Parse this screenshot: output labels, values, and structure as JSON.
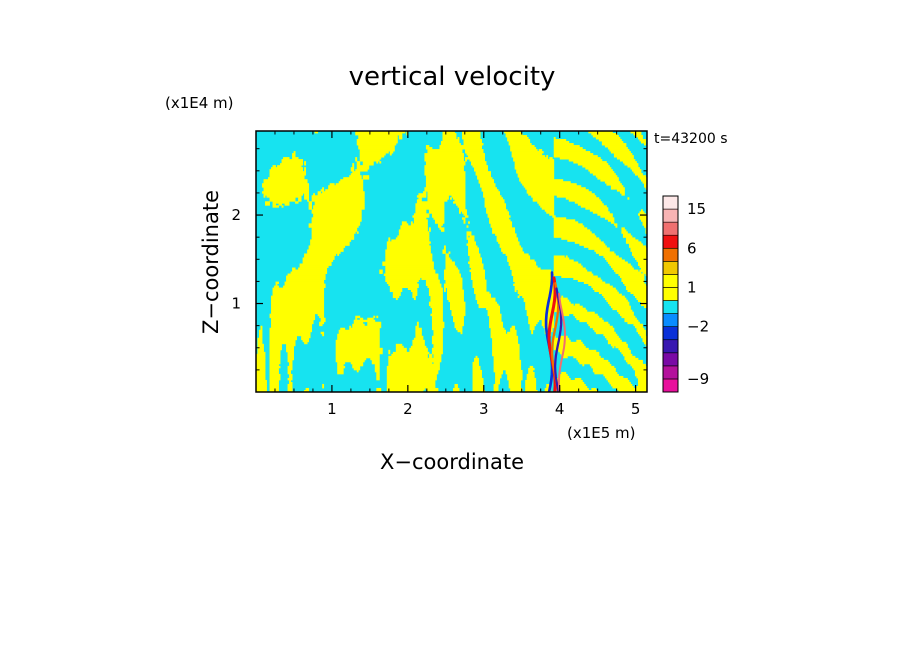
{
  "chart_data": {
    "type": "heatmap",
    "title": "vertical velocity",
    "xlabel": "X−coordinate",
    "ylabel": "Z−coordinate",
    "x_unit": "(x1E5 m)",
    "y_unit": "(x1E4 m)",
    "time_label": "t=43200 s",
    "xlim": [
      0,
      5.15
    ],
    "ylim": [
      0,
      2.95
    ],
    "x_ticks": [
      1,
      2,
      3,
      4,
      5
    ],
    "y_ticks": [
      1,
      2
    ],
    "colorbar": {
      "labels": [
        "15",
        "6",
        "1",
        "−2",
        "−9"
      ],
      "label_values": [
        15,
        6,
        1,
        -2,
        -9
      ],
      "levels": [
        -12,
        -9,
        -6,
        -4,
        -3,
        -2,
        -1,
        0,
        1,
        2,
        3,
        6,
        9,
        12,
        15,
        18
      ],
      "colors": [
        "#e8109c",
        "#b4119c",
        "#7a0aa5",
        "#3818b0",
        "#0a30d8",
        "#0a8cff",
        "#17e3f0",
        "#ffff00",
        "#ffff00",
        "#f0c800",
        "#f07000",
        "#f01010",
        "#f07070",
        "#f8b4b4",
        "#fde8e8"
      ]
    },
    "dominant_colors": {
      "negative": "#17e3f0",
      "positive": "#ffff00"
    }
  }
}
